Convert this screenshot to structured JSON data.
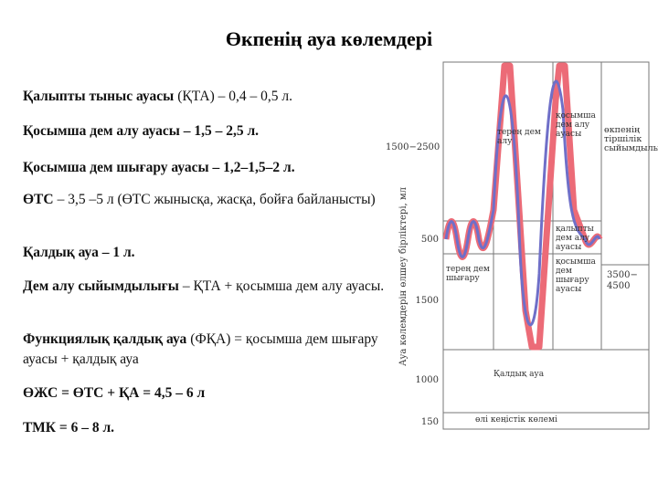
{
  "title": "Өкпенің ауа көлемдері",
  "items": [
    {
      "bold": "Қалыпты тыныс ауасы",
      "text": "(ҚТА) – 0,4 – 0,5 л."
    },
    {
      "bold": "Қосымша дем алу ауасы – 1,5 – 2,5 л."
    },
    {
      "bold": "Қосымша дем шығару ауасы – 1,2–1,5–2 л."
    },
    {
      "bold": "ӨТС",
      "text": "– 3,5 –5 л (ӨТС жынысқа, жасқа, бойға байланысты)"
    },
    {
      "bold": "Қалдық ауа – 1 л."
    },
    {
      "bold": "Дем алу сыйымдылығы",
      "text": "– ҚТА + қосымша дем алу ауасы."
    },
    {
      "bold": "Функциялық қалдық ауа",
      "text": "(ФҚА) = қосымша дем шығару ауасы + қалдық ауа"
    },
    {
      "bold": "ӨЖС = ӨТС + ҚА = 4,5 – 6 л"
    },
    {
      "bold": "ТМК = 6 – 8 л."
    }
  ],
  "diagram": {
    "axis_label": "Ауа көлемдерін өлшеу бірліктері, мл",
    "scale_left": [
      "1500−2500",
      "500",
      "1500",
      "1000",
      "150"
    ],
    "scale_right": "3500− 4500",
    "labels": [
      "терең дем алу",
      "қосымша дем алу ауасы",
      "өкпенің тіршілік сыйымдылығы",
      "қалыпты дем алу ауасы",
      "терең дем шығару",
      "қосымша дем шығару ауасы",
      "Қалдық ауа",
      "өлі кеңістік көлемі"
    ]
  }
}
